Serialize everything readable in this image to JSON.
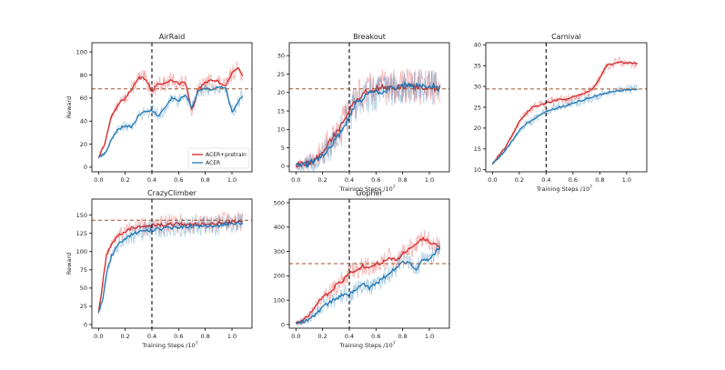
{
  "chart_data": [
    {
      "type": "line",
      "title": "AirRaid",
      "xlabel": "",
      "ylabel": "Reward",
      "xlim": [
        -0.05,
        1.15
      ],
      "ylim": [
        -4,
        108
      ],
      "xticks": [
        0.0,
        0.2,
        0.4,
        0.6,
        0.8,
        1.0
      ],
      "xtick_labels": [
        "0.0",
        "0.2",
        "0.4",
        "0.6",
        "0.8",
        "1.0"
      ],
      "yticks": [
        0,
        20,
        40,
        60,
        80,
        100
      ],
      "ytick_labels": [
        "0",
        "20",
        "40",
        "60",
        "80",
        "100"
      ],
      "vline_x": 0.4,
      "hline_y": 68,
      "legend": {
        "placement": "lower-right",
        "entries": [
          "ACER+pretrain",
          "ACER"
        ]
      },
      "series": [
        {
          "name": "ACER+pretrain",
          "color": "#d62728",
          "noise": 7,
          "x": [
            0.0,
            0.05,
            0.1,
            0.15,
            0.2,
            0.25,
            0.3,
            0.35,
            0.4,
            0.45,
            0.5,
            0.55,
            0.6,
            0.65,
            0.7,
            0.75,
            0.8,
            0.85,
            0.9,
            0.95,
            1.0,
            1.05,
            1.08
          ],
          "y": [
            8,
            22,
            45,
            55,
            60,
            68,
            78,
            77,
            66,
            73,
            72,
            76,
            72,
            74,
            50,
            68,
            73,
            76,
            74,
            70,
            82,
            86,
            80
          ]
        },
        {
          "name": "ACER",
          "color": "#1f77b4",
          "noise": 6,
          "x": [
            0.0,
            0.05,
            0.1,
            0.15,
            0.2,
            0.25,
            0.3,
            0.35,
            0.4,
            0.45,
            0.5,
            0.55,
            0.6,
            0.65,
            0.7,
            0.75,
            0.8,
            0.85,
            0.9,
            0.95,
            1.0,
            1.05,
            1.08
          ],
          "y": [
            8,
            12,
            25,
            33,
            36,
            35,
            45,
            48,
            49,
            45,
            52,
            60,
            58,
            63,
            52,
            66,
            68,
            67,
            70,
            69,
            48,
            57,
            63
          ]
        }
      ]
    },
    {
      "type": "line",
      "title": "Breakout",
      "xlabel": "Training Steps /10",
      "ylabel": "",
      "xlim": [
        -0.05,
        1.15
      ],
      "ylim": [
        -1.5,
        33.5
      ],
      "xticks": [
        0.0,
        0.2,
        0.4,
        0.6,
        0.8,
        1.0
      ],
      "xtick_labels": [
        "0.0",
        "0.2",
        "0.4",
        "0.6",
        "0.8",
        "1.0"
      ],
      "yticks": [
        0,
        5,
        10,
        15,
        20,
        25,
        30
      ],
      "ytick_labels": [
        "0",
        "5",
        "10",
        "15",
        "20",
        "25",
        "30"
      ],
      "vline_x": 0.4,
      "hline_y": 21,
      "series": [
        {
          "name": "ACER+pretrain",
          "color": "#d62728",
          "noise": 5,
          "x": [
            0.0,
            0.05,
            0.1,
            0.15,
            0.2,
            0.25,
            0.3,
            0.35,
            0.4,
            0.45,
            0.5,
            0.55,
            0.6,
            0.7,
            0.8,
            0.9,
            1.0,
            1.05,
            1.08
          ],
          "y": [
            0.3,
            0.4,
            1,
            2,
            4,
            6.5,
            9,
            12,
            15,
            18,
            19.5,
            20.5,
            21,
            21.5,
            21.5,
            21.5,
            21.2,
            21.3,
            21.2
          ]
        },
        {
          "name": "ACER",
          "color": "#1f77b4",
          "noise": 5,
          "x": [
            0.0,
            0.05,
            0.1,
            0.15,
            0.2,
            0.25,
            0.3,
            0.35,
            0.4,
            0.45,
            0.5,
            0.55,
            0.6,
            0.7,
            0.8,
            0.9,
            1.0,
            1.05,
            1.08
          ],
          "y": [
            0.3,
            0.3,
            0.8,
            1.5,
            3,
            5,
            7.5,
            10,
            13.5,
            17,
            18.5,
            19.5,
            20,
            21,
            21.8,
            21.8,
            22,
            21.5,
            21.3
          ]
        }
      ]
    },
    {
      "type": "line",
      "title": "Carnival",
      "xlabel": "Training Steps /10",
      "ylabel": "",
      "xlim": [
        -0.05,
        1.15
      ],
      "ylim": [
        9.5,
        40.5
      ],
      "xticks": [
        0.0,
        0.2,
        0.4,
        0.6,
        0.8,
        1.0
      ],
      "xtick_labels": [
        "0.0",
        "0.2",
        "0.4",
        "0.6",
        "0.8",
        "1.0"
      ],
      "yticks": [
        10,
        15,
        20,
        25,
        30,
        35,
        40
      ],
      "ytick_labels": [
        "10",
        "15",
        "20",
        "25",
        "30",
        "35",
        "40"
      ],
      "vline_x": 0.4,
      "hline_y": 29.4,
      "series": [
        {
          "name": "ACER+pretrain",
          "color": "#d62728",
          "noise": 1.2,
          "x": [
            0.0,
            0.05,
            0.1,
            0.15,
            0.2,
            0.25,
            0.3,
            0.35,
            0.4,
            0.45,
            0.5,
            0.55,
            0.6,
            0.65,
            0.7,
            0.75,
            0.8,
            0.85,
            0.9,
            0.95,
            1.0,
            1.05,
            1.08
          ],
          "y": [
            11.5,
            13.5,
            15.5,
            18.5,
            21.5,
            23.5,
            25,
            25.5,
            26,
            26.5,
            27,
            26.8,
            27.5,
            28,
            28.5,
            29.5,
            32,
            35,
            35.5,
            36,
            35.5,
            35.6,
            35.5
          ]
        },
        {
          "name": "ACER",
          "color": "#1f77b4",
          "noise": 1.2,
          "x": [
            0.0,
            0.05,
            0.1,
            0.15,
            0.2,
            0.25,
            0.3,
            0.35,
            0.4,
            0.45,
            0.5,
            0.55,
            0.6,
            0.65,
            0.7,
            0.75,
            0.8,
            0.85,
            0.9,
            0.95,
            1.0,
            1.05,
            1.08
          ],
          "y": [
            11.5,
            13,
            15,
            17,
            19.5,
            21,
            22,
            23,
            24,
            24.5,
            25,
            25.5,
            26,
            26.5,
            27,
            27.5,
            28,
            28.5,
            28.8,
            29,
            29.2,
            29.3,
            29.4
          ]
        }
      ]
    },
    {
      "type": "line",
      "title": "CrazyClimber",
      "xlabel": "Training Steps /10",
      "ylabel": "Reward",
      "xlim": [
        -0.05,
        1.15
      ],
      "ylim": [
        -5,
        172
      ],
      "xticks": [
        0.0,
        0.2,
        0.4,
        0.6,
        0.8,
        1.0
      ],
      "xtick_labels": [
        "0.0",
        "0.2",
        "0.4",
        "0.6",
        "0.8",
        "1.0"
      ],
      "yticks": [
        0,
        25,
        50,
        75,
        100,
        125,
        150
      ],
      "ytick_labels": [
        "0",
        "25",
        "50",
        "75",
        "100",
        "125",
        "150"
      ],
      "vline_x": 0.4,
      "hline_y": 143,
      "series": [
        {
          "name": "ACER+pretrain",
          "color": "#d62728",
          "noise": 14,
          "x": [
            0.0,
            0.03,
            0.06,
            0.1,
            0.15,
            0.2,
            0.25,
            0.3,
            0.35,
            0.4,
            0.5,
            0.6,
            0.7,
            0.8,
            0.9,
            1.0,
            1.08
          ],
          "y": [
            15,
            55,
            95,
            112,
            122,
            128,
            132,
            133,
            135,
            136,
            137,
            138,
            138,
            138,
            139,
            140,
            142
          ]
        },
        {
          "name": "ACER",
          "color": "#1f77b4",
          "noise": 14,
          "x": [
            0.0,
            0.03,
            0.06,
            0.1,
            0.15,
            0.2,
            0.25,
            0.3,
            0.35,
            0.4,
            0.5,
            0.6,
            0.7,
            0.8,
            0.9,
            1.0,
            1.08
          ],
          "y": [
            15,
            35,
            70,
            95,
            110,
            118,
            123,
            127,
            129,
            130,
            132,
            134,
            135,
            135,
            136,
            138,
            140
          ]
        }
      ]
    },
    {
      "type": "line",
      "title": "Gopher",
      "xlabel": "Training Steps /10",
      "ylabel": "",
      "xlim": [
        -0.05,
        1.15
      ],
      "ylim": [
        -15,
        515
      ],
      "xticks": [
        0.0,
        0.2,
        0.4,
        0.6,
        0.8,
        1.0
      ],
      "xtick_labels": [
        "0.0",
        "0.2",
        "0.4",
        "0.6",
        "0.8",
        "1.0"
      ],
      "yticks": [
        0,
        100,
        200,
        300,
        400,
        500
      ],
      "ytick_labels": [
        "0",
        "100",
        "200",
        "300",
        "400",
        "500"
      ],
      "vline_x": 0.4,
      "hline_y": 250,
      "series": [
        {
          "name": "ACER+pretrain",
          "color": "#d62728",
          "noise": 40,
          "x": [
            0.0,
            0.05,
            0.1,
            0.15,
            0.2,
            0.25,
            0.3,
            0.35,
            0.4,
            0.45,
            0.5,
            0.55,
            0.6,
            0.65,
            0.7,
            0.75,
            0.8,
            0.85,
            0.9,
            0.95,
            1.0,
            1.05,
            1.08
          ],
          "y": [
            5,
            15,
            40,
            80,
            110,
            130,
            160,
            180,
            215,
            220,
            240,
            235,
            250,
            255,
            275,
            260,
            290,
            310,
            330,
            355,
            340,
            330,
            320
          ]
        },
        {
          "name": "ACER",
          "color": "#1f77b4",
          "noise": 40,
          "x": [
            0.0,
            0.05,
            0.1,
            0.15,
            0.2,
            0.25,
            0.3,
            0.35,
            0.4,
            0.45,
            0.5,
            0.55,
            0.6,
            0.65,
            0.7,
            0.75,
            0.8,
            0.85,
            0.9,
            0.95,
            1.0,
            1.05,
            1.08
          ],
          "y": [
            5,
            10,
            20,
            45,
            70,
            90,
            105,
            120,
            125,
            140,
            170,
            150,
            165,
            190,
            210,
            230,
            260,
            250,
            220,
            270,
            265,
            300,
            320
          ]
        }
      ]
    }
  ],
  "xlabel_exponent": "7"
}
